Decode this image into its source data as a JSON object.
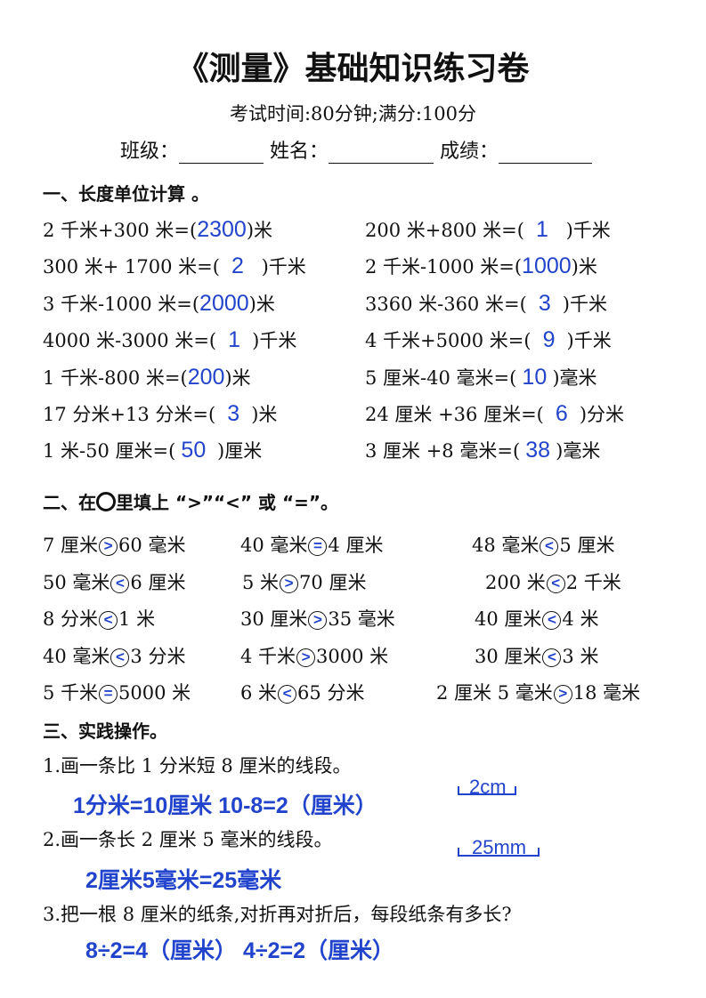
{
  "title": "《测量》基础知识练习卷",
  "subtitle": "考试时间:80分钟;满分:100分",
  "info": {
    "class_label": "班级：",
    "name_label": "姓名：",
    "score_label": "成绩："
  },
  "section1": {
    "heading": "一、长度单位计算 。",
    "left": [
      {
        "pre": "2 千米+300 米=(",
        "ans": "2300",
        "post": ")米"
      },
      {
        "pre": "300 米+ 1700 米=(",
        "ans": "2",
        "post": " )千米"
      },
      {
        "pre": "3 千米-1000 米=(",
        "ans": "2000",
        "post": ")米"
      },
      {
        "pre": "4000 米-3000 米=(",
        "ans": "1",
        "post": ")千米"
      },
      {
        "pre": "1 千米-800 米=(",
        "ans": "200",
        "post": ")米"
      },
      {
        "pre": "17 分米+13 分米=(",
        "ans": "3",
        "post": ")米"
      },
      {
        "pre": "1 米-50 厘米=(",
        "ans": "50",
        "post": " )厘米"
      }
    ],
    "right": [
      {
        "pre": "200 米+800 米=(",
        "ans": "1",
        "post": " )千米"
      },
      {
        "pre": "2 千米-1000  米=(",
        "ans": "1000",
        "post": ")米"
      },
      {
        "pre": "3360 米-360 米=(",
        "ans": "3",
        "post": ")千米"
      },
      {
        "pre": "4 千米+5000 米=(",
        "ans": "9",
        "post": ")千米"
      },
      {
        "pre": "5 厘米-40 毫米=(",
        "ans": "10",
        "post": ")毫米"
      },
      {
        "pre": "24 厘米  +36 厘米=(",
        "ans": "6",
        "post": ")分米"
      },
      {
        "pre": "3 厘米  +8  毫米=(",
        "ans": "38",
        "post": ")毫米"
      }
    ]
  },
  "section2": {
    "heading_pre": "二、在",
    "heading_post": "里填上 “>”“<” 或 “=”。",
    "rows": [
      [
        {
          "a": "7 厘米",
          "s": ">",
          "b": "60 毫米"
        },
        {
          "a": "40 毫米",
          "s": "=",
          "b": "4 厘米"
        },
        {
          "a": "48 毫米",
          "s": "<",
          "b": "5 厘米"
        }
      ],
      [
        {
          "a": "50 毫米",
          "s": "<",
          "b": "6 厘米"
        },
        {
          "a": "5 米",
          "s": ">",
          "b": "70 厘米"
        },
        {
          "a": "200 米",
          "s": "<",
          "b": "2 千米"
        }
      ],
      [
        {
          "a": "8 分米",
          "s": "<",
          "b": "1 米"
        },
        {
          "a": "30 厘米",
          "s": ">",
          "b": "35 毫米"
        },
        {
          "a": "40 厘米",
          "s": "<",
          "b": "4 米"
        }
      ],
      [
        {
          "a": "40 毫米",
          "s": "<",
          "b": "3 分米"
        },
        {
          "a": "4 千米",
          "s": ">",
          "b": "3000 米"
        },
        {
          "a": "30 厘米",
          "s": "<",
          "b": "3 米"
        }
      ],
      [
        {
          "a": "5 千米",
          "s": "=",
          "b": "5000 米"
        },
        {
          "a": "6 米",
          "s": "<",
          "b": "65 分米"
        },
        {
          "a": "2 厘米 5 毫米",
          "s": ">",
          "b": "18 毫米"
        }
      ]
    ]
  },
  "section3": {
    "heading": "三、实践操作。",
    "q1": "1.画一条比 1 分米短 8 厘米的线段。",
    "a1": "1分米=10厘米  10-8=2（厘米）",
    "seg1": "2cm",
    "q2": "2.画一条长 2 厘米 5 毫米的线段。",
    "a2": "2厘米5毫米=25毫米",
    "seg2": "25mm",
    "q3": "3.把一根 8 厘米的纸条,对折再对折后，每段纸条有多长?",
    "a3": "8÷2=4（厘米）  4÷2=2（厘米）"
  },
  "colors": {
    "answer": "#2244cc",
    "text": "#111111"
  }
}
